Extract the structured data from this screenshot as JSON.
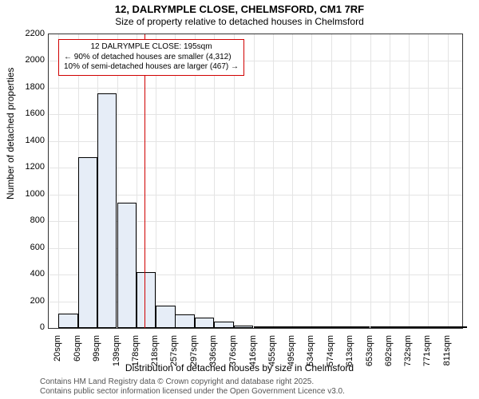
{
  "title": "12, DALRYMPLE CLOSE, CHELMSFORD, CM1 7RF",
  "subtitle": "Size of property relative to detached houses in Chelmsford",
  "ylabel": "Number of detached properties",
  "xlabel": "Distribution of detached houses by size in Chelmsford",
  "attribution1": "Contains HM Land Registry data © Crown copyright and database right 2025.",
  "attribution2": "Contains public sector information licensed under the Open Government Licence v3.0.",
  "chart": {
    "type": "histogram",
    "background_color": "#ffffff",
    "plot_border_color": "#333333",
    "grid_color": "#e4e4e4",
    "bar_fill": "#e6edf7",
    "bar_stroke": "#000000",
    "ref_line_color": "#d00000",
    "annot_border_color": "#d00000",
    "ylim": [
      0,
      2200
    ],
    "ytick_step": 200,
    "yticks": [
      0,
      200,
      400,
      600,
      800,
      1000,
      1200,
      1400,
      1600,
      1800,
      2000,
      2200
    ],
    "xlim": [
      0,
      840
    ],
    "xticks": [
      20,
      60,
      99,
      139,
      178,
      218,
      257,
      297,
      336,
      376,
      416,
      455,
      495,
      534,
      574,
      613,
      653,
      692,
      732,
      771,
      811
    ],
    "xtick_labels": [
      "20sqm",
      "60sqm",
      "99sqm",
      "139sqm",
      "178sqm",
      "218sqm",
      "257sqm",
      "297sqm",
      "336sqm",
      "376sqm",
      "416sqm",
      "455sqm",
      "495sqm",
      "534sqm",
      "574sqm",
      "613sqm",
      "653sqm",
      "692sqm",
      "732sqm",
      "771sqm",
      "811sqm"
    ],
    "bar_width_sqm": 39.5,
    "bars": [
      {
        "x": 20,
        "y": 110
      },
      {
        "x": 60,
        "y": 1280
      },
      {
        "x": 99,
        "y": 1760
      },
      {
        "x": 139,
        "y": 940
      },
      {
        "x": 178,
        "y": 420
      },
      {
        "x": 218,
        "y": 170
      },
      {
        "x": 257,
        "y": 100
      },
      {
        "x": 297,
        "y": 80
      },
      {
        "x": 336,
        "y": 45
      },
      {
        "x": 376,
        "y": 20
      },
      {
        "x": 416,
        "y": 15
      },
      {
        "x": 455,
        "y": 5
      },
      {
        "x": 495,
        "y": 3
      },
      {
        "x": 534,
        "y": 2
      },
      {
        "x": 574,
        "y": 2
      },
      {
        "x": 613,
        "y": 1
      },
      {
        "x": 653,
        "y": 1
      },
      {
        "x": 692,
        "y": 1
      },
      {
        "x": 732,
        "y": 0
      },
      {
        "x": 771,
        "y": 1
      },
      {
        "x": 811,
        "y": 1
      }
    ],
    "reference_x": 195,
    "annotation": {
      "line1": "12 DALRYMPLE CLOSE: 195sqm",
      "line2": "← 90% of detached houses are smaller (4,312)",
      "line3": "10% of semi-detached houses are larger (467) →"
    },
    "title_fontsize": 13,
    "subtitle_fontsize": 12,
    "axis_label_fontsize": 12,
    "tick_fontsize": 11,
    "annot_fontsize": 10,
    "attr_fontsize": 10
  }
}
